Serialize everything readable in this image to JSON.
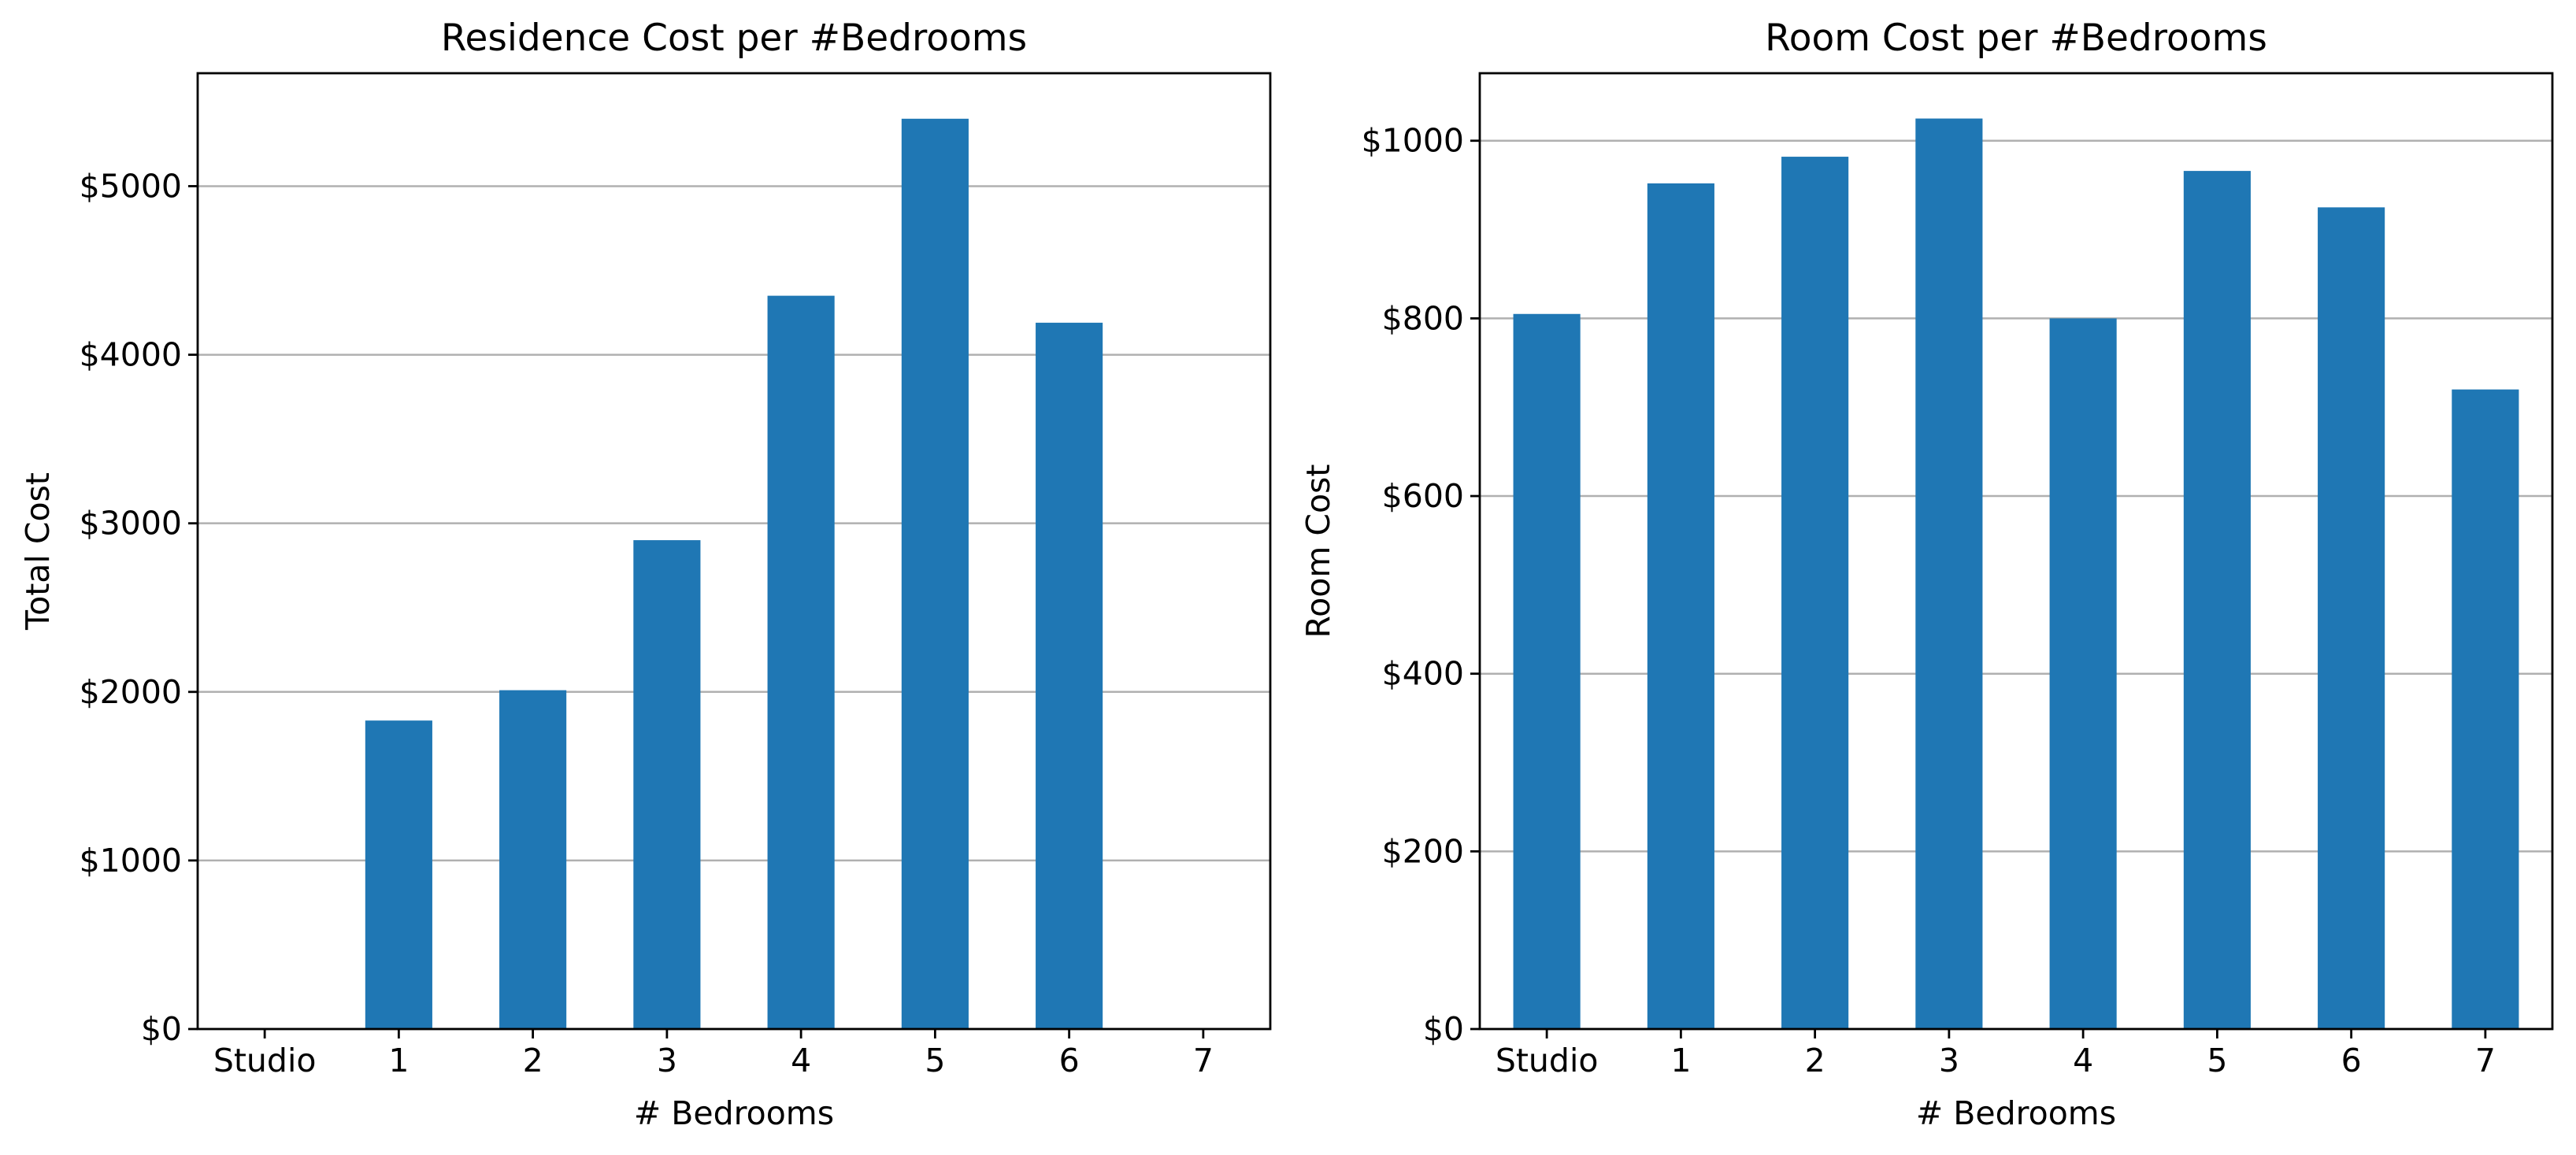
{
  "chart_data": [
    {
      "type": "bar",
      "title": "Residence Cost per #Bedrooms",
      "xlabel": "# Bedrooms",
      "ylabel": "Total Cost",
      "categories": [
        "Studio",
        "1",
        "2",
        "3",
        "4",
        "5",
        "6",
        "7"
      ],
      "values": [
        0,
        1830,
        2010,
        2900,
        4350,
        5400,
        4190,
        0
      ],
      "ylim": [
        0,
        5670
      ],
      "yticks": [
        0,
        1000,
        2000,
        3000,
        4000,
        5000
      ],
      "ytick_labels": [
        "$0",
        "$1000",
        "$2000",
        "$3000",
        "$4000",
        "$5000"
      ],
      "grid": "y",
      "color": "#1f77b4"
    },
    {
      "type": "bar",
      "title": "Room Cost per #Bedrooms",
      "xlabel": "# Bedrooms",
      "ylabel": "Room Cost",
      "categories": [
        "Studio",
        "1",
        "2",
        "3",
        "4",
        "5",
        "6",
        "7"
      ],
      "values": [
        805,
        952,
        982,
        1025,
        800,
        966,
        925,
        720
      ],
      "ylim": [
        0,
        1076
      ],
      "yticks": [
        0,
        200,
        400,
        600,
        800,
        1000
      ],
      "ytick_labels": [
        "$0",
        "$200",
        "$400",
        "$600",
        "$800",
        "$1000"
      ],
      "grid": "y",
      "color": "#1f77b4"
    }
  ]
}
